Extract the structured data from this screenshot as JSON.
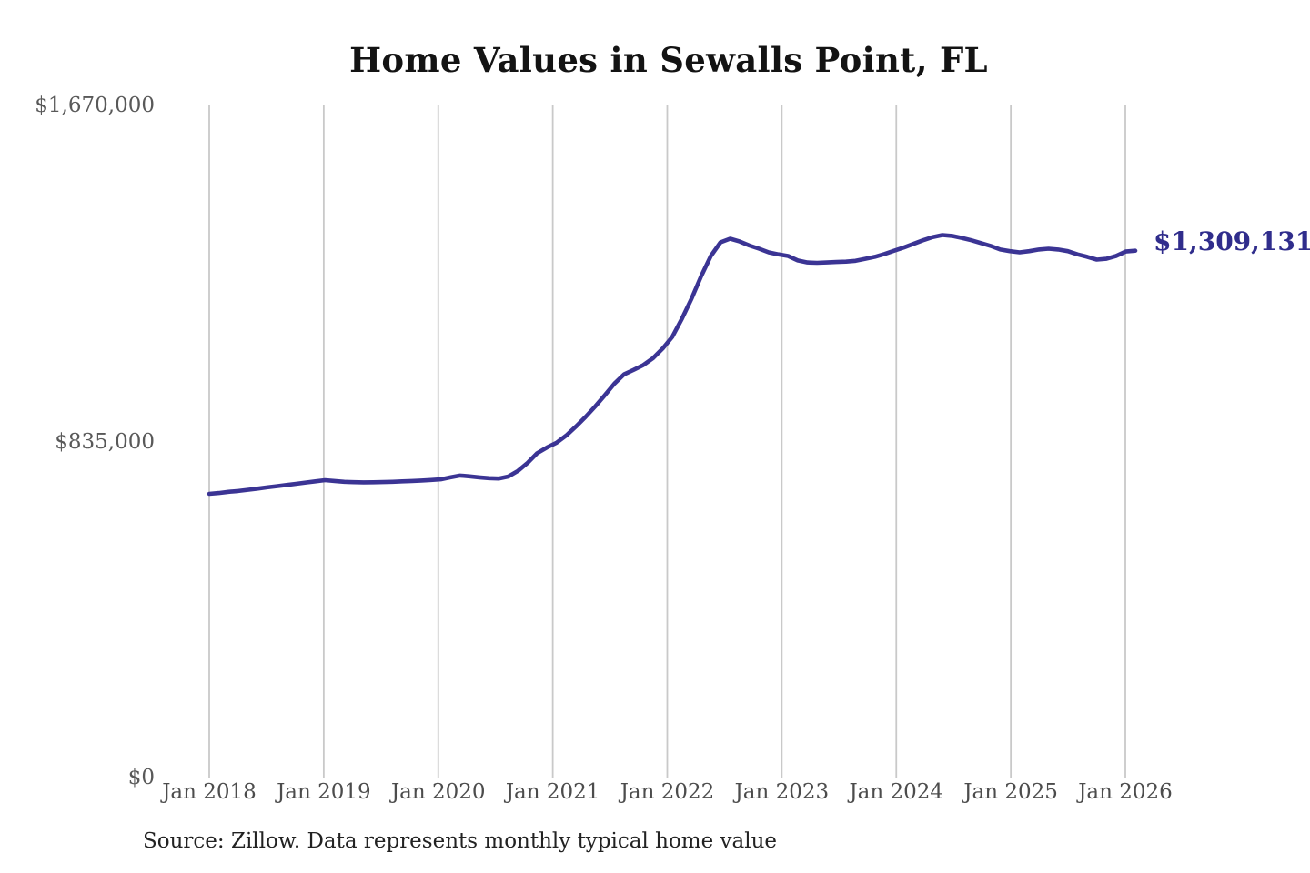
{
  "page": {
    "background": "#ffffff"
  },
  "chart_data": {
    "type": "line",
    "title": "Home Values in Sewalls Point, FL",
    "source": "Source: Zillow. Data represents monthly typical home value",
    "end_label": "$1,309,131",
    "end_value": 1309131,
    "xlabel": "",
    "ylabel": "",
    "x_start": "Jan 2018",
    "x_end": "Jan 2026",
    "x_interval": "monthly",
    "x_ticks": [
      "Jan 2018",
      "Jan 2019",
      "Jan 2020",
      "Jan 2021",
      "Jan 2022",
      "Jan 2023",
      "Jan 2024",
      "Jan 2025",
      "Jan 2026"
    ],
    "y_ticks": [
      {
        "value": 1670000,
        "label": "$1,670,000"
      },
      {
        "value": 835000,
        "label": "$835,000"
      },
      {
        "value": 0,
        "label": "$0"
      }
    ],
    "ylim": [
      0,
      1670000
    ],
    "grid": true,
    "legend_position": "none",
    "colors": {
      "line": "#3b3494",
      "end_label": "#302d8c",
      "grid": "#c9c9c9",
      "title": "#131313",
      "axis_text": "#4c4c4c",
      "y_axis_text": "#595959"
    },
    "series": [
      {
        "name": "Monthly typical home value",
        "color": "#3b3494",
        "values": [
          705000,
          707000,
          710000,
          712000,
          715000,
          718000,
          721000,
          724000,
          727000,
          730000,
          733000,
          736000,
          739000,
          737000,
          735000,
          734000,
          733500,
          733800,
          734200,
          735000,
          736000,
          737000,
          738000,
          739500,
          741000,
          746000,
          750500,
          748500,
          746000,
          744000,
          743000,
          748000,
          762000,
          782000,
          806000,
          820000,
          832000,
          850000,
          872000,
          896000,
          922000,
          950000,
          979000,
          1002000,
          1013000,
          1025000,
          1042000,
          1066000,
          1095000,
          1140000,
          1190000,
          1246000,
          1296000,
          1330000,
          1339000,
          1332000,
          1322000,
          1314000,
          1305000,
          1300000,
          1296000,
          1285000,
          1280000,
          1279000,
          1280000,
          1281000,
          1282000,
          1284000,
          1289000,
          1294000,
          1301000,
          1309000,
          1317000,
          1326000,
          1335000,
          1343000,
          1348000,
          1346000,
          1341000,
          1335000,
          1328000,
          1321000,
          1312000,
          1308000,
          1305000,
          1308000,
          1312000,
          1314000,
          1312000,
          1308000,
          1300000,
          1294000,
          1287000,
          1289000,
          1296000,
          1307000,
          1309131
        ]
      }
    ]
  }
}
